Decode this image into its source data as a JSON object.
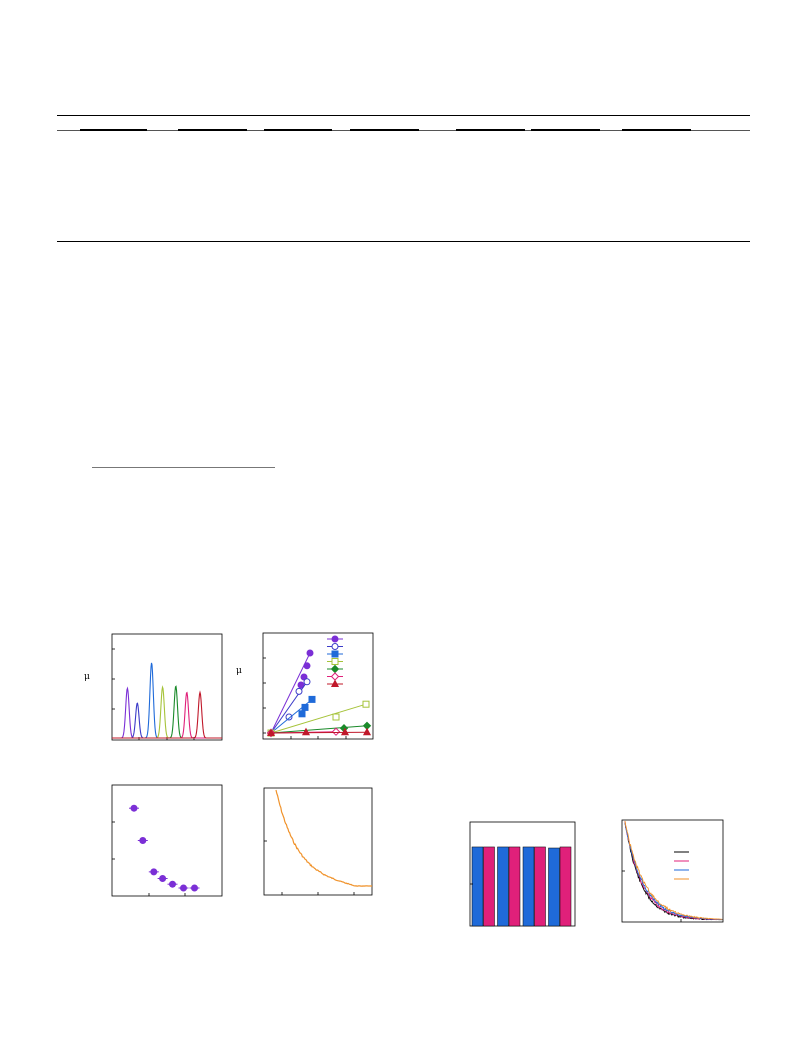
{
  "panels": {
    "a_label": "μ",
    "b_label": "μ"
  },
  "chart_data": [
    {
      "type": "line",
      "id": "peaks",
      "series_colors": [
        "#7b2fd6",
        "#3b3bc8",
        "#1f6ad9",
        "#a6c33a",
        "#1a8a2a",
        "#e0207a",
        "#c0182a"
      ],
      "peaks": [
        {
          "center": 0.14,
          "height": 0.47
        },
        {
          "center": 0.23,
          "height": 0.33
        },
        {
          "center": 0.36,
          "height": 0.71
        },
        {
          "center": 0.46,
          "height": 0.48
        },
        {
          "center": 0.58,
          "height": 0.49
        },
        {
          "center": 0.68,
          "height": 0.43
        },
        {
          "center": 0.8,
          "height": 0.43
        }
      ]
    },
    {
      "type": "scatter",
      "id": "linear-fits",
      "series": [
        {
          "color": "#7b2fd6",
          "marker": "circle-filled",
          "points": [
            [
              0,
              0
            ],
            [
              3,
              3
            ],
            [
              3.3,
              3.5
            ],
            [
              3.6,
              4.2
            ],
            [
              3.9,
              5
            ]
          ]
        },
        {
          "color": "#3b3bc8",
          "marker": "circle-open",
          "points": [
            [
              0,
              0
            ],
            [
              1.8,
              1
            ],
            [
              2.8,
              2.6
            ],
            [
              3.6,
              3.2
            ]
          ]
        },
        {
          "color": "#1f6ad9",
          "marker": "square-filled",
          "points": [
            [
              0,
              0
            ],
            [
              3.1,
              1.2
            ],
            [
              3.4,
              1.6
            ],
            [
              4.1,
              2.1
            ]
          ]
        },
        {
          "color": "#a6c33a",
          "marker": "square-open",
          "points": [
            [
              0,
              0
            ],
            [
              6.5,
              1
            ],
            [
              9.5,
              1.8
            ]
          ]
        },
        {
          "color": "#1a8a2a",
          "marker": "diamond-filled",
          "points": [
            [
              0,
              0
            ],
            [
              7.3,
              0.3
            ],
            [
              9.6,
              0.45
            ]
          ]
        },
        {
          "color": "#e0207a",
          "marker": "diamond-open",
          "points": [
            [
              0,
              0
            ],
            [
              6.5,
              0.08
            ]
          ]
        },
        {
          "color": "#c0182a",
          "marker": "triangle-filled",
          "points": [
            [
              0,
              0
            ],
            [
              3.5,
              0.05
            ],
            [
              7.4,
              0.05
            ],
            [
              9.6,
              0.05
            ]
          ]
        }
      ]
    },
    {
      "type": "scatter",
      "id": "decay-points",
      "color": "#7b2fd6",
      "points": [
        [
          0.2,
          0.84
        ],
        [
          0.28,
          0.5
        ],
        [
          0.38,
          0.17
        ],
        [
          0.46,
          0.1
        ],
        [
          0.55,
          0.04
        ],
        [
          0.65,
          0.0
        ],
        [
          0.75,
          0.0
        ]
      ]
    },
    {
      "type": "line",
      "id": "orange-decay",
      "color": "#f0922a"
    },
    {
      "type": "bar",
      "id": "bars",
      "series": [
        {
          "color": "#1f6ad9",
          "values": [
            0.76,
            0.76,
            0.76,
            0.75
          ]
        },
        {
          "color": "#e0207a",
          "values": [
            0.76,
            0.76,
            0.76,
            0.76
          ]
        }
      ]
    },
    {
      "type": "line",
      "id": "multi-decay",
      "series": [
        {
          "color": "#000000"
        },
        {
          "color": "#e0207a"
        },
        {
          "color": "#1f6ad9"
        },
        {
          "color": "#f0922a"
        }
      ]
    }
  ]
}
